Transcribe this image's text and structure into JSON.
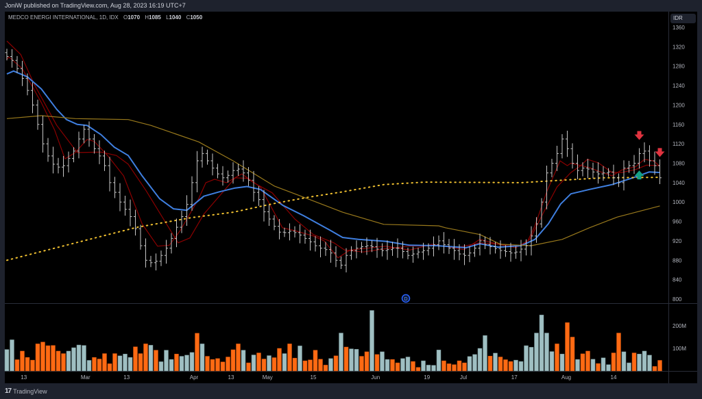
{
  "header": {
    "published_text": "JoniW published on TradingView.com, Aug 28, 2023 16:19 UTC+7"
  },
  "legend": {
    "symbol": "MEDCO ENERGI INTERNATIONAL, 1D, IDX",
    "o_label": "O",
    "o_value": "1070",
    "h_label": "H",
    "h_value": "1085",
    "l_label": "L",
    "l_value": "1040",
    "c_label": "C",
    "c_value": "1050"
  },
  "currency_label": "IDR",
  "footer": {
    "logo": "17",
    "brand": "TradingView"
  },
  "colors": {
    "background": "#000000",
    "panel": "#1e222d",
    "bar": "#c8c8c8",
    "volume_up": "#9fbfc2",
    "volume_down": "#ff6a13",
    "ma_blue": "#3f7fe0",
    "ma_red": "#8b0000",
    "ma_gold": "#9a7a1c",
    "ma_dotted": "#f0c030",
    "arrow_down": "#e0333f",
    "arrow_up": "#14a085",
    "dividend": "#2962ff"
  },
  "chart_data": {
    "type": "ohlc",
    "title": "MEDCO ENERGI INTERNATIONAL, 1D, IDX",
    "price_axis": {
      "ylim": [
        800,
        1360
      ],
      "ticks": [
        "1360",
        "1320",
        "1280",
        "1240",
        "1200",
        "1160",
        "1120",
        "1080",
        "1040",
        "1000",
        "960",
        "920",
        "880",
        "840",
        "800"
      ]
    },
    "volume_axis": {
      "ticks": [
        {
          "label": "100M",
          "value": 100
        },
        {
          "label": "200M",
          "value": 200
        }
      ],
      "unit": "M"
    },
    "x_labels": [
      {
        "label": "13",
        "bar": 3.3
      },
      {
        "label": "Mar",
        "bar": 15.3
      },
      {
        "label": "13",
        "bar": 23.3
      },
      {
        "label": "Apr",
        "bar": 36.4
      },
      {
        "label": "13",
        "bar": 43.6
      },
      {
        "label": "May",
        "bar": 50.7
      },
      {
        "label": "15",
        "bar": 59.6
      },
      {
        "label": "Jun",
        "bar": 71.7
      },
      {
        "label": "19",
        "bar": 81.7
      },
      {
        "label": "Jul",
        "bar": 88.8
      },
      {
        "label": "17",
        "bar": 98.7
      },
      {
        "label": "Aug",
        "bar": 108.8
      },
      {
        "label": "14",
        "bar": 118
      }
    ],
    "close": [
      1300,
      1292,
      1275,
      1255,
      1230,
      1200,
      1160,
      1120,
      1095,
      1078,
      1072,
      1075,
      1090,
      1105,
      1130,
      1150,
      1130,
      1110,
      1095,
      1075,
      1040,
      1020,
      1000,
      985,
      970,
      945,
      910,
      880,
      875,
      878,
      890,
      905,
      925,
      948,
      970,
      995,
      1040,
      1085,
      1100,
      1085,
      1070,
      1058,
      1050,
      1055,
      1065,
      1068,
      1060,
      1045,
      1020,
      1005,
      980,
      965,
      950,
      938,
      937,
      940,
      937,
      932,
      925,
      918,
      910,
      905,
      902,
      895,
      880,
      870,
      890,
      900,
      905,
      908,
      910,
      908,
      903,
      900,
      902,
      905,
      905,
      898,
      890,
      893,
      897,
      900,
      905,
      912,
      920,
      912,
      905,
      900,
      893,
      890,
      895,
      905,
      920,
      912,
      908,
      904,
      900,
      898,
      895,
      897,
      903,
      910,
      930,
      955,
      1000,
      1060,
      1080,
      1100,
      1130,
      1110,
      1080,
      1065,
      1070,
      1068,
      1062,
      1058,
      1060,
      1062,
      1050,
      1040,
      1070,
      1075,
      1080,
      1100,
      1105,
      1085,
      1075,
      1050
    ],
    "volume_m": [
      95,
      138,
      50,
      88,
      60,
      48,
      120,
      128,
      112,
      113,
      88,
      77,
      88,
      103,
      115,
      113,
      47,
      60,
      53,
      77,
      32,
      77,
      67,
      75,
      60,
      107,
      77,
      120,
      114,
      92,
      41,
      92,
      51,
      75,
      65,
      70,
      82,
      167,
      120,
      65,
      51,
      55,
      40,
      62,
      94,
      120,
      92,
      36,
      71,
      80,
      53,
      68,
      59,
      100,
      77,
      120,
      57,
      111,
      45,
      49,
      92,
      52,
      26,
      55,
      67,
      168,
      106,
      98,
      96,
      65,
      85,
      268,
      73,
      85,
      51,
      51,
      36,
      55,
      62,
      42,
      16,
      45,
      26,
      25,
      93,
      45,
      32,
      28,
      45,
      36,
      64,
      73,
      100,
      157,
      66,
      79,
      62,
      50,
      42,
      48,
      42,
      112,
      105,
      168,
      248,
      168,
      86,
      120,
      75,
      214,
      150,
      51,
      76,
      88,
      52,
      33,
      58,
      28,
      80,
      168,
      85,
      36,
      80,
      75,
      88,
      70,
      20,
      47
    ],
    "volume_direction": "ggooooooooooggggg ooooogggooogoggg oggg ogooooooogogoogoogoogooooogogoggoogoggooggooggggoooooggggogoooggggggggogoogoogoggooggoggg ooo",
    "moving_averages": [
      {
        "name": "fast-red",
        "style": "solid",
        "color_key": "ma_red",
        "points": [
          [
            0,
            1294
          ],
          [
            0.4,
            1299
          ],
          [
            3,
            1275
          ],
          [
            6.7,
            1205
          ],
          [
            9.3,
            1148
          ],
          [
            11.3,
            1089
          ],
          [
            13.3,
            1102
          ],
          [
            15.6,
            1129
          ],
          [
            17,
            1125
          ],
          [
            19.6,
            1096
          ],
          [
            22.7,
            1054
          ],
          [
            26.3,
            955
          ],
          [
            29.3,
            909
          ],
          [
            31.6,
            911
          ],
          [
            33.7,
            941
          ],
          [
            37.3,
            1007
          ],
          [
            38.7,
            1040
          ],
          [
            40.4,
            1047
          ],
          [
            42.7,
            1040
          ],
          [
            45.7,
            1058
          ],
          [
            49.3,
            1031
          ],
          [
            53.6,
            947
          ],
          [
            56,
            941
          ],
          [
            59.6,
            930
          ],
          [
            61.7,
            920
          ],
          [
            64.4,
            885
          ],
          [
            66.7,
            901
          ],
          [
            69.3,
            904
          ],
          [
            73.7,
            909
          ],
          [
            78.3,
            901
          ],
          [
            82.7,
            913
          ],
          [
            88.9,
            902
          ],
          [
            92,
            923
          ],
          [
            95.6,
            913
          ],
          [
            99,
            906
          ],
          [
            101.3,
            920
          ],
          [
            102.7,
            951
          ],
          [
            105,
            1021
          ],
          [
            107.6,
            1085
          ],
          [
            109,
            1075
          ],
          [
            109.7,
            1080
          ],
          [
            113.3,
            1071
          ],
          [
            115,
            1064
          ],
          [
            117.7,
            1054
          ],
          [
            119.6,
            1066
          ],
          [
            122.3,
            1073
          ],
          [
            124,
            1088
          ],
          [
            125.7,
            1085
          ],
          [
            126.9,
            1075
          ]
        ]
      },
      {
        "name": "slow-red",
        "style": "solid",
        "color_key": "ma_red",
        "points": [
          [
            0,
            1332
          ],
          [
            2.7,
            1304
          ],
          [
            5.3,
            1243
          ],
          [
            9.7,
            1158
          ],
          [
            13.7,
            1102
          ],
          [
            18.3,
            1103
          ],
          [
            21.3,
            1096
          ],
          [
            23.6,
            1078
          ],
          [
            27.1,
            1023
          ],
          [
            33.3,
            916
          ],
          [
            35.6,
            926
          ],
          [
            38.3,
            975
          ],
          [
            44,
            1045
          ],
          [
            44.4,
            1050
          ],
          [
            46.7,
            1049
          ],
          [
            48,
            1040
          ],
          [
            51.6,
            1019
          ],
          [
            56,
            965
          ],
          [
            59.6,
            933
          ],
          [
            63.6,
            916
          ],
          [
            65.7,
            901
          ],
          [
            69.3,
            897
          ],
          [
            73.7,
            904
          ],
          [
            78.3,
            909
          ],
          [
            82.7,
            910
          ],
          [
            88,
            907
          ],
          [
            92,
            916
          ],
          [
            100,
            910
          ],
          [
            101.7,
            923
          ],
          [
            104.4,
            979
          ],
          [
            107,
            1031
          ],
          [
            109.7,
            1061
          ],
          [
            111.6,
            1075
          ],
          [
            112.9,
            1088
          ],
          [
            115,
            1081
          ],
          [
            117.7,
            1061
          ],
          [
            119.6,
            1061
          ],
          [
            122.3,
            1067
          ],
          [
            124.4,
            1076
          ],
          [
            126.9,
            1075
          ]
        ]
      },
      {
        "name": "blue",
        "style": "solid",
        "color_key": "ma_blue",
        "points": [
          [
            0,
            1264
          ],
          [
            1.3,
            1270
          ],
          [
            4,
            1258
          ],
          [
            6.7,
            1233
          ],
          [
            9.7,
            1191
          ],
          [
            11.6,
            1170
          ],
          [
            13.7,
            1160
          ],
          [
            15.6,
            1158
          ],
          [
            18.3,
            1139
          ],
          [
            20.9,
            1113
          ],
          [
            23.6,
            1096
          ],
          [
            26.3,
            1054
          ],
          [
            29.7,
            1007
          ],
          [
            32.4,
            986
          ],
          [
            35,
            983
          ],
          [
            38.3,
            1012
          ],
          [
            41.3,
            1021
          ],
          [
            44.4,
            1029
          ],
          [
            46.7,
            1032
          ],
          [
            49.3,
            1026
          ],
          [
            53.7,
            993
          ],
          [
            57.7,
            972
          ],
          [
            63,
            941
          ],
          [
            65.3,
            927
          ],
          [
            68.4,
            923
          ],
          [
            73.7,
            919
          ],
          [
            78.3,
            911
          ],
          [
            83.6,
            910
          ],
          [
            89.3,
            906
          ],
          [
            92,
            914
          ],
          [
            95.6,
            907
          ],
          [
            100,
            910
          ],
          [
            102.7,
            923
          ],
          [
            105.3,
            955
          ],
          [
            107.7,
            996
          ],
          [
            109.7,
            1017
          ],
          [
            113.3,
            1026
          ],
          [
            117.7,
            1036
          ],
          [
            122.3,
            1052
          ],
          [
            124.9,
            1062
          ],
          [
            126.9,
            1061
          ]
        ]
      },
      {
        "name": "gold",
        "style": "solid",
        "color_key": "ma_gold",
        "points": [
          [
            0,
            1172
          ],
          [
            6.7,
            1178
          ],
          [
            13.3,
            1172
          ],
          [
            23.6,
            1170
          ],
          [
            28,
            1158
          ],
          [
            37.3,
            1124
          ],
          [
            44,
            1085
          ],
          [
            52,
            1033
          ],
          [
            56,
            1017
          ],
          [
            65.3,
            979
          ],
          [
            73.3,
            954
          ],
          [
            84,
            951
          ],
          [
            85.3,
            947
          ],
          [
            92,
            933
          ],
          [
            96,
            913
          ],
          [
            102,
            910
          ],
          [
            108,
            923
          ],
          [
            113.3,
            947
          ],
          [
            118.7,
            969
          ],
          [
            127,
            992
          ]
        ]
      },
      {
        "name": "dotted-gold",
        "style": "dotted",
        "color_key": "ma_dotted",
        "points": [
          [
            0,
            880
          ],
          [
            25.3,
            948
          ],
          [
            36,
            968
          ],
          [
            44,
            979
          ],
          [
            52,
            997
          ],
          [
            58.7,
            1010
          ],
          [
            65.3,
            1021
          ],
          [
            73.3,
            1036
          ],
          [
            81.3,
            1041
          ],
          [
            100,
            1040
          ],
          [
            108,
            1045
          ],
          [
            116,
            1050
          ],
          [
            127,
            1051
          ]
        ]
      }
    ],
    "signals": [
      {
        "type": "down-arrow",
        "bar": 123,
        "price": 1135
      },
      {
        "type": "down-arrow",
        "bar": 127,
        "price": 1100
      },
      {
        "type": "up-arrow",
        "bar": 123,
        "price": 1058
      }
    ],
    "events": [
      {
        "type": "dividend",
        "label": "D",
        "bar": 77.6
      }
    ]
  }
}
